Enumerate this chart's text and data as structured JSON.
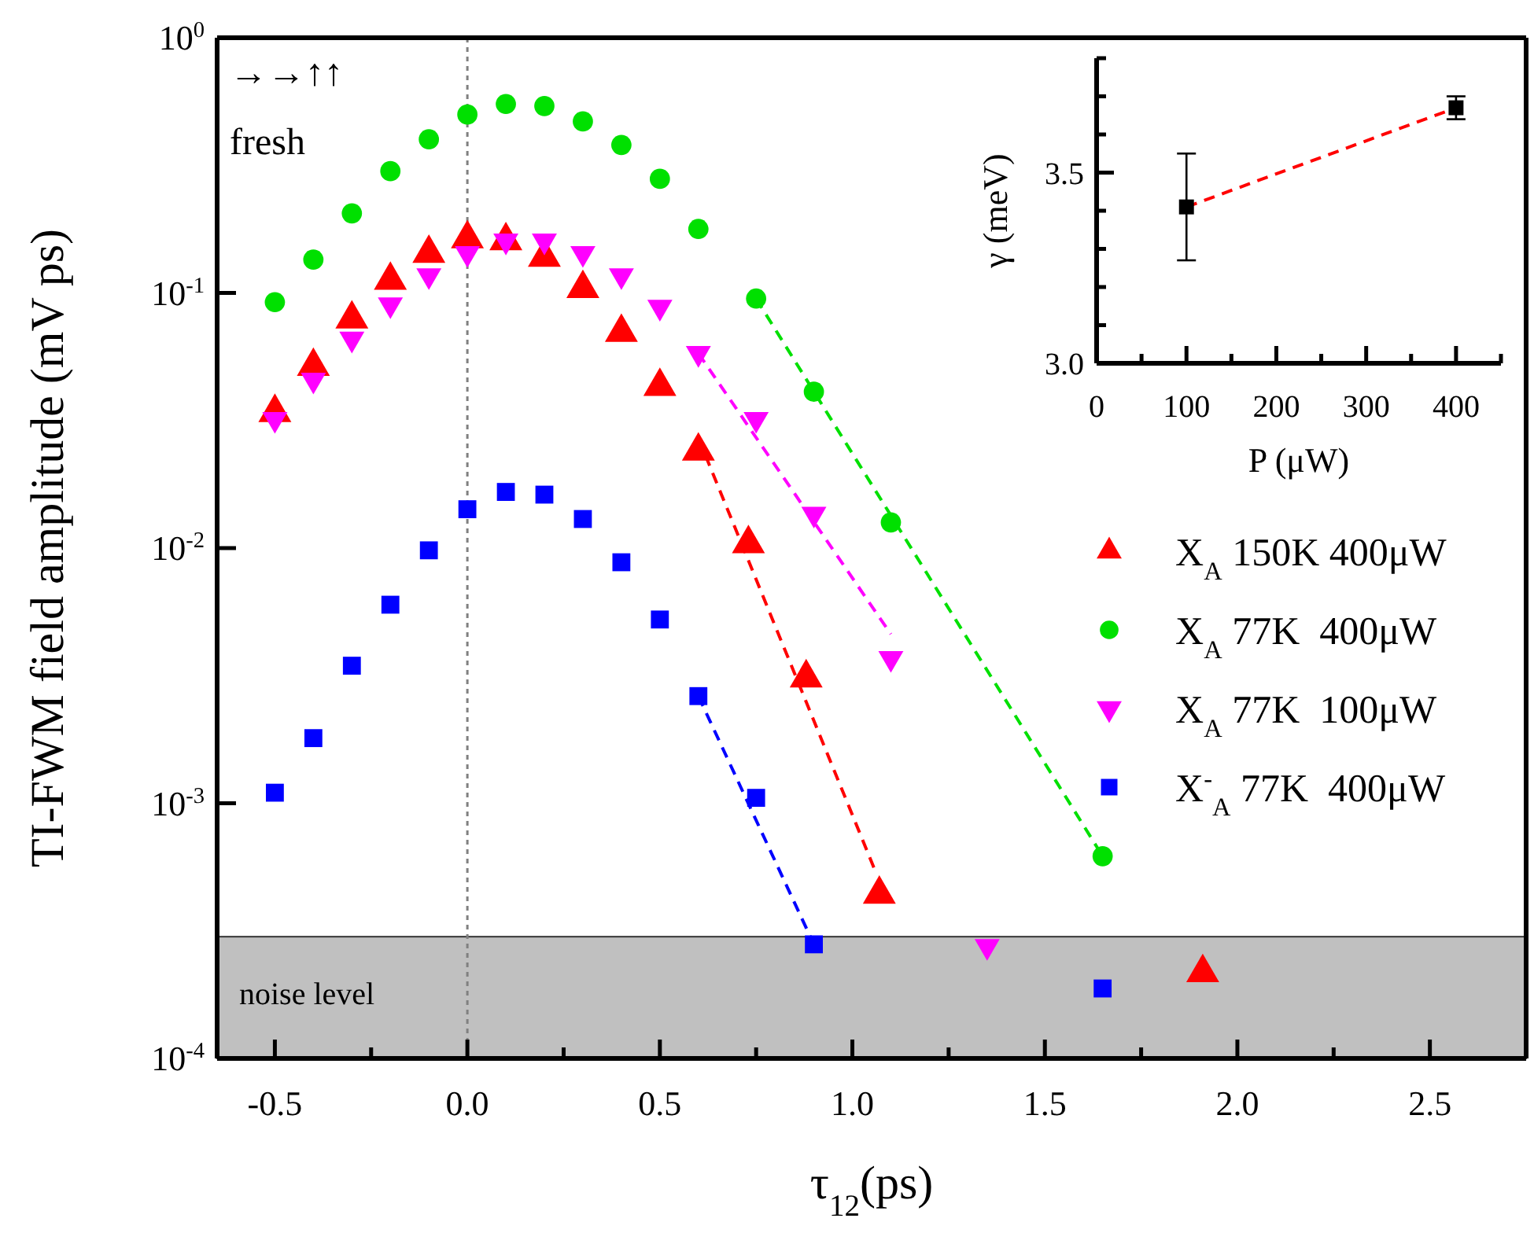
{
  "chart_data": [
    {
      "type": "scatter",
      "xlabel": "τ$_{12}$(ps)",
      "ylabel": "TI-FWM field amplitude (mV ps)",
      "log": "y",
      "xlim": [
        -0.65,
        2.75
      ],
      "ylim": [
        0.0001,
        1
      ],
      "xticks": [
        {
          "value": -0.5,
          "label": "-0.5"
        },
        {
          "value": -0.25,
          "label": null
        },
        {
          "value": 0,
          "label": "0.0"
        },
        {
          "value": 0.25,
          "label": null
        },
        {
          "value": 0.5,
          "label": "0.5"
        },
        {
          "value": 0.75,
          "label": null
        },
        {
          "value": 1,
          "label": "1.0"
        },
        {
          "value": 1.25,
          "label": null
        },
        {
          "value": 1.5,
          "label": "1.5"
        },
        {
          "value": 1.75,
          "label": null
        },
        {
          "value": 2,
          "label": "2.0"
        },
        {
          "value": 2.25,
          "label": null
        },
        {
          "value": 2.5,
          "label": "2.5"
        }
      ],
      "yticks": [
        {
          "value": 0.0001,
          "label": "10$^{-4}$"
        },
        {
          "value": 0.001,
          "label": "10$^{-3}$"
        },
        {
          "value": 0.01,
          "label": "10$^{-2}$"
        },
        {
          "value": 0.1,
          "label": "10$^{-1}$"
        },
        {
          "value": 1,
          "label": "10$^{0}$"
        }
      ],
      "legend": "right",
      "ref_lines": [
        {
          "axis": "x",
          "value": 0,
          "color": "#808080",
          "line_style": "dotted"
        }
      ],
      "bands": [
        {
          "axis": "y",
          "from": 0.0001,
          "to": 0.0003,
          "label": "noise level",
          "color": "#c0c0c0"
        }
      ],
      "annotations": [
        "→→↑↑",
        "fresh"
      ],
      "series": [
        {
          "type": "line",
          "color": "#00e000",
          "line_style": "dashed",
          "x": [
            0.75,
            1.65
          ],
          "values": [
            0.095,
            0.00062
          ]
        },
        {
          "type": "line",
          "color": "#ff0000",
          "line_style": "dashed",
          "x": [
            0.6,
            1.06
          ],
          "values": [
            0.027,
            0.00054
          ]
        },
        {
          "type": "line",
          "color": "#ff00ff",
          "line_style": "dashed",
          "x": [
            0.6,
            1.1
          ],
          "values": [
            0.058,
            0.0046
          ]
        },
        {
          "type": "line",
          "color": "#0000ff",
          "line_style": "dashed",
          "x": [
            0.6,
            0.9
          ],
          "values": [
            0.00263,
            0.00028
          ]
        },
        {
          "name": "X$_{A}$ 150K 400μW",
          "color": "#ff0000",
          "marker": "triangle",
          "x": [
            -0.5,
            -0.4,
            -0.3,
            -0.2,
            -0.1,
            0,
            0.1,
            0.2,
            0.3,
            0.4,
            0.5,
            0.6,
            0.73,
            0.88,
            1.07,
            1.91
          ],
          "values": [
            0.034,
            0.0515,
            0.079,
            0.112,
            0.143,
            0.163,
            0.16,
            0.138,
            0.104,
            0.07,
            0.043,
            0.024,
            0.0104,
            0.0031,
            0.00044,
            0.000217
          ]
        },
        {
          "name": "X$_{A}$ 77K  400μW",
          "color": "#00e000",
          "marker": "circle",
          "x": [
            -0.5,
            -0.4,
            -0.3,
            -0.2,
            -0.1,
            0,
            0.1,
            0.2,
            0.3,
            0.4,
            0.5,
            0.6,
            0.75,
            0.9,
            1.1,
            1.65
          ],
          "values": [
            0.092,
            0.135,
            0.205,
            0.3,
            0.4,
            0.5,
            0.55,
            0.54,
            0.47,
            0.38,
            0.28,
            0.178,
            0.095,
            0.041,
            0.0126,
            0.00062
          ]
        },
        {
          "name": "X$_{A}$ 77K  100μW",
          "color": "#ff00ff",
          "marker": "triangle-down",
          "x": [
            -0.5,
            -0.4,
            -0.3,
            -0.2,
            -0.1,
            0,
            0.1,
            0.2,
            0.3,
            0.4,
            0.5,
            0.6,
            0.75,
            0.9,
            1.1,
            1.35
          ],
          "values": [
            0.032,
            0.0456,
            0.066,
            0.09,
            0.117,
            0.143,
            0.16,
            0.16,
            0.143,
            0.117,
            0.088,
            0.058,
            0.032,
            0.0136,
            0.0037,
            0.000275
          ]
        },
        {
          "name": "X$^{-}$$_{A}$ 77K  400μW",
          "color": "#0000ff",
          "marker": "square",
          "x": [
            -0.5,
            -0.4,
            -0.3,
            -0.2,
            -0.1,
            0,
            0.1,
            0.2,
            0.3,
            0.4,
            0.5,
            0.6,
            0.75,
            0.9,
            1.65
          ],
          "values": [
            0.0011,
            0.0018,
            0.00346,
            0.006,
            0.0098,
            0.0142,
            0.0166,
            0.0162,
            0.013,
            0.0088,
            0.00525,
            0.00263,
            0.00105,
            0.00028,
            0.000188
          ]
        }
      ]
    },
    {
      "type": "scatter",
      "xlabel": "P (μW)",
      "ylabel": "γ (meV)",
      "xlim": [
        0,
        450
      ],
      "ylim": [
        3.0,
        3.8
      ],
      "xticks": [
        0,
        {
          "value": 50,
          "label": null
        },
        100,
        {
          "value": 150,
          "label": null
        },
        200,
        {
          "value": 250,
          "label": null
        },
        300,
        {
          "value": 350,
          "label": null
        },
        400,
        {
          "value": 450,
          "label": null
        }
      ],
      "yticks": [
        {
          "value": 3,
          "label": "3.0"
        },
        {
          "value": 3.1,
          "label": null
        },
        {
          "value": 3.2,
          "label": null
        },
        {
          "value": 3.3,
          "label": null
        },
        {
          "value": 3.4,
          "label": null
        },
        {
          "value": 3.5,
          "label": "3.5"
        },
        {
          "value": 3.6,
          "label": null
        },
        {
          "value": 3.7,
          "label": null
        },
        {
          "value": 3.8,
          "label": null
        }
      ],
      "series": [
        {
          "type": "line",
          "color": "#ff0000",
          "line_style": "dashed",
          "x": [
            100,
            400
          ],
          "values": [
            3.41,
            3.67
          ]
        },
        {
          "color": "#000000",
          "marker": "square",
          "x": [
            100,
            400
          ],
          "values": [
            3.41,
            3.67
          ],
          "errors": [
            0.14,
            0.03
          ]
        }
      ]
    }
  ]
}
